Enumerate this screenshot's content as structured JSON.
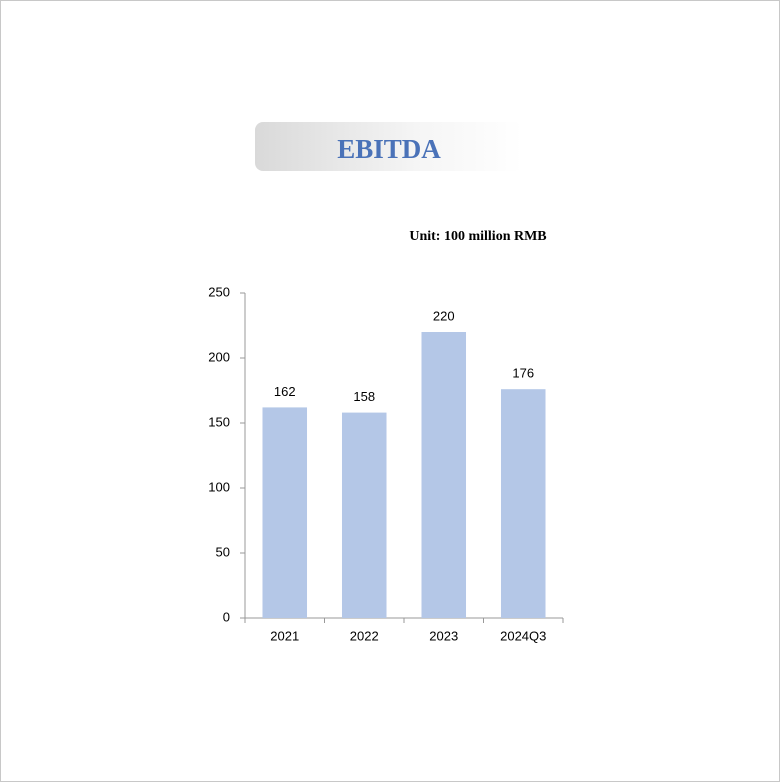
{
  "chart_data": {
    "type": "bar",
    "title": "EBITDA",
    "subtitle": "Unit: 100 million RMB",
    "categories": [
      "2021",
      "2022",
      "2023",
      "2024Q3"
    ],
    "values": [
      162,
      158,
      220,
      176
    ],
    "color": "#b4c7e7",
    "ylim": [
      0,
      250
    ],
    "yticks": [
      0,
      50,
      100,
      150,
      200,
      250
    ],
    "grid": false,
    "data_labels": true
  }
}
